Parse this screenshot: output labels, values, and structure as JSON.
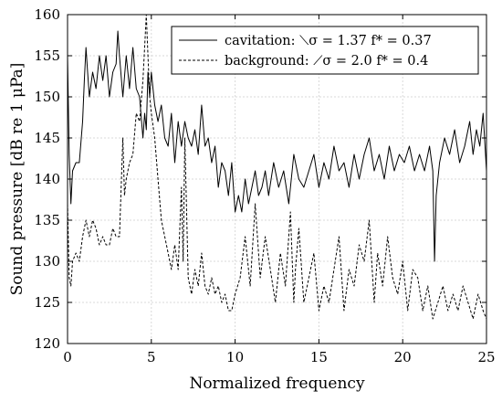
{
  "chart_data": {
    "type": "line",
    "xlabel": "Normalized frequency",
    "ylabel": "Sound pressure [dB re 1 μPa]",
    "xlim": [
      0,
      25
    ],
    "ylim": [
      120,
      160
    ],
    "xticks": [
      "0",
      "5",
      "10",
      "15",
      "20",
      "25"
    ],
    "yticks": [
      "120",
      "125",
      "130",
      "135",
      "140",
      "145",
      "150",
      "155",
      "160"
    ],
    "grid": true,
    "legend": "top-right",
    "series": [
      {
        "name": "cavitation: ⟍σ = 1.37 f* = 0.37",
        "style": "solid",
        "color": "#000000",
        "x": [
          0,
          0.1,
          0.2,
          0.3,
          0.5,
          0.7,
          0.9,
          1.0,
          1.1,
          1.2,
          1.3,
          1.5,
          1.7,
          1.9,
          2.1,
          2.3,
          2.5,
          2.7,
          2.9,
          3.0,
          3.1,
          3.3,
          3.5,
          3.7,
          3.9,
          4.1,
          4.3,
          4.5,
          4.6,
          4.7,
          4.8,
          4.9,
          5.0,
          5.2,
          5.4,
          5.6,
          5.8,
          6.0,
          6.2,
          6.4,
          6.6,
          6.8,
          7.0,
          7.2,
          7.4,
          7.6,
          7.8,
          8.0,
          8.2,
          8.4,
          8.6,
          8.8,
          9.0,
          9.2,
          9.4,
          9.6,
          9.8,
          10.0,
          10.2,
          10.4,
          10.6,
          10.8,
          11.0,
          11.2,
          11.4,
          11.6,
          11.8,
          12.0,
          12.3,
          12.6,
          12.9,
          13.2,
          13.5,
          13.8,
          14.1,
          14.4,
          14.7,
          15.0,
          15.3,
          15.6,
          15.9,
          16.2,
          16.5,
          16.8,
          17.1,
          17.4,
          17.7,
          18.0,
          18.3,
          18.6,
          18.9,
          19.2,
          19.5,
          19.8,
          20.1,
          20.4,
          20.7,
          21.0,
          21.3,
          21.6,
          21.8,
          21.9,
          22.0,
          22.2,
          22.5,
          22.8,
          23.1,
          23.4,
          23.7,
          24.0,
          24.2,
          24.4,
          24.6,
          24.8,
          25.0
        ],
        "y": [
          155,
          143,
          137,
          141,
          142,
          142,
          147,
          152,
          156,
          153,
          150,
          153,
          151,
          155,
          152,
          155,
          150,
          153,
          154,
          158,
          155,
          150,
          155,
          151,
          156,
          151,
          150,
          145,
          148,
          146,
          153,
          150,
          153,
          149,
          147,
          149,
          145,
          144,
          148,
          142,
          147,
          144,
          147,
          145,
          144,
          146,
          143,
          149,
          144,
          145,
          142,
          144,
          139,
          142,
          141,
          138,
          142,
          136,
          138,
          136,
          140,
          137,
          139,
          141,
          138,
          139,
          141,
          138,
          142,
          139,
          141,
          137,
          143,
          140,
          139,
          141,
          143,
          139,
          142,
          140,
          144,
          141,
          142,
          139,
          143,
          140,
          143,
          145,
          141,
          143,
          140,
          144,
          141,
          143,
          142,
          144,
          141,
          143,
          141,
          144,
          141,
          130,
          138,
          142,
          145,
          143,
          146,
          142,
          144,
          147,
          143,
          146,
          144,
          148,
          141
        ]
      },
      {
        "name": "background: ⟋σ = 2.0 f* = 0.4",
        "style": "dashed",
        "color": "#000000",
        "x": [
          0,
          0.1,
          0.2,
          0.3,
          0.5,
          0.7,
          0.9,
          1.1,
          1.3,
          1.5,
          1.7,
          1.9,
          2.1,
          2.3,
          2.5,
          2.7,
          2.9,
          3.1,
          3.3,
          3.4,
          3.5,
          3.7,
          3.9,
          4.1,
          4.3,
          4.5,
          4.7,
          4.8,
          4.9,
          5.0,
          5.2,
          5.4,
          5.6,
          5.8,
          6.0,
          6.2,
          6.4,
          6.6,
          6.8,
          6.9,
          7.0,
          7.2,
          7.4,
          7.6,
          7.8,
          8.0,
          8.2,
          8.4,
          8.6,
          8.8,
          9.0,
          9.2,
          9.4,
          9.6,
          9.8,
          10.0,
          10.3,
          10.6,
          10.9,
          11.2,
          11.5,
          11.8,
          12.1,
          12.4,
          12.7,
          13.0,
          13.3,
          13.5,
          13.6,
          13.8,
          14.1,
          14.4,
          14.7,
          15.0,
          15.3,
          15.6,
          15.9,
          16.2,
          16.5,
          16.8,
          17.1,
          17.4,
          17.7,
          18.0,
          18.3,
          18.5,
          18.8,
          19.1,
          19.4,
          19.7,
          20.0,
          20.3,
          20.6,
          20.9,
          21.2,
          21.5,
          21.8,
          22.1,
          22.4,
          22.7,
          23.0,
          23.3,
          23.6,
          23.9,
          24.2,
          24.5,
          24.8,
          25.0
        ],
        "y": [
          137,
          128,
          127,
          130,
          131,
          130,
          133,
          135,
          133,
          135,
          134,
          132,
          133,
          132,
          132,
          134,
          133,
          133,
          145,
          138,
          140,
          142,
          143,
          148,
          147,
          152,
          160,
          155,
          150,
          148,
          145,
          140,
          135,
          133,
          131,
          129,
          132,
          129,
          139,
          130,
          145,
          128,
          126,
          129,
          127,
          131,
          127,
          126,
          128,
          126,
          127,
          125,
          126,
          124,
          124,
          126,
          128,
          133,
          127,
          137,
          128,
          133,
          129,
          125,
          131,
          127,
          136,
          125,
          129,
          134,
          125,
          128,
          131,
          124,
          127,
          125,
          129,
          133,
          124,
          129,
          127,
          132,
          130,
          135,
          125,
          131,
          127,
          133,
          128,
          126,
          130,
          124,
          129,
          128,
          124,
          127,
          123,
          125,
          127,
          124,
          126,
          124,
          127,
          125,
          123,
          126,
          124,
          123
        ]
      }
    ]
  }
}
